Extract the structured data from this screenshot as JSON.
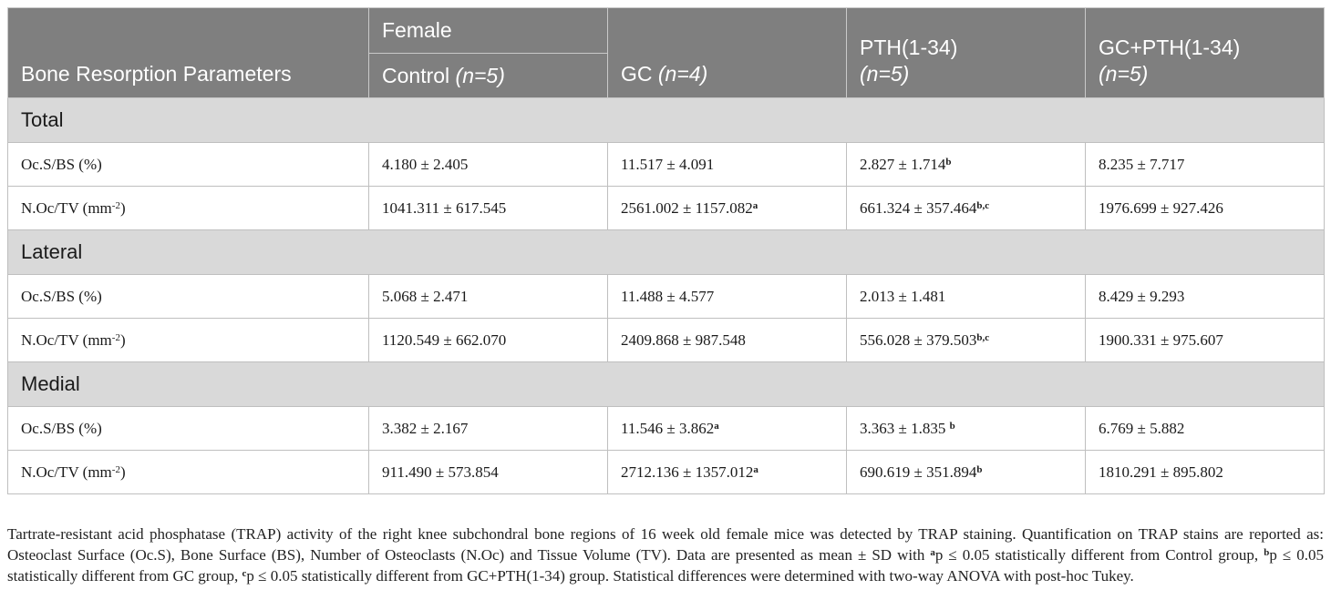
{
  "header": {
    "param_label": "Bone Resorption Parameters",
    "group_label": "Female",
    "columns": [
      {
        "name": "Control",
        "n": "(n=5)"
      },
      {
        "name": "GC",
        "n": "(n=4)"
      },
      {
        "name": "PTH(1-34)",
        "n": "(n=5)"
      },
      {
        "name": "GC+PTH(1-34)",
        "n": "(n=5)"
      }
    ]
  },
  "sections": [
    {
      "title": "Total",
      "rows": [
        {
          "param": "Oc.S/BS (%)",
          "cells": [
            {
              "v": "4.180 ± 2.405",
              "s": ""
            },
            {
              "v": "11.517 ± 4.091",
              "s": ""
            },
            {
              "v": "2.827 ± 1.714",
              "s": "b"
            },
            {
              "v": "8.235 ± 7.717",
              "s": ""
            }
          ]
        },
        {
          "param": "N.Oc/TV (mm",
          "unit_sup": "-2",
          "param_end": ")",
          "cells": [
            {
              "v": "1041.311 ± 617.545",
              "s": ""
            },
            {
              "v": "2561.002 ± 1157.082",
              "s": "a"
            },
            {
              "v": "661.324 ± 357.464",
              "s": "b,c"
            },
            {
              "v": "1976.699 ± 927.426",
              "s": ""
            }
          ]
        }
      ]
    },
    {
      "title": "Lateral",
      "rows": [
        {
          "param": "Oc.S/BS (%)",
          "cells": [
            {
              "v": "5.068 ± 2.471",
              "s": ""
            },
            {
              "v": "11.488 ± 4.577",
              "s": ""
            },
            {
              "v": "2.013 ± 1.481",
              "s": ""
            },
            {
              "v": "8.429 ± 9.293",
              "s": ""
            }
          ]
        },
        {
          "param": "N.Oc/TV (mm",
          "unit_sup": "-2",
          "param_end": ")",
          "cells": [
            {
              "v": "1120.549 ± 662.070",
              "s": ""
            },
            {
              "v": "2409.868 ± 987.548",
              "s": ""
            },
            {
              "v": "556.028 ± 379.503",
              "s": "b,c"
            },
            {
              "v": "1900.331 ± 975.607",
              "s": ""
            }
          ]
        }
      ]
    },
    {
      "title": "Medial",
      "rows": [
        {
          "param": "Oc.S/BS (%)",
          "cells": [
            {
              "v": "3.382 ± 2.167",
              "s": ""
            },
            {
              "v": "11.546 ± 3.862",
              "s": "a"
            },
            {
              "v": "3.363 ± 1.835 ",
              "s": "b"
            },
            {
              "v": "6.769 ± 5.882",
              "s": ""
            }
          ]
        },
        {
          "param": "N.Oc/TV (mm",
          "unit_sup": "-2",
          "param_end": ")",
          "cells": [
            {
              "v": "911.490 ± 573.854",
              "s": ""
            },
            {
              "v": "2712.136 ± 1357.012",
              "s": "a"
            },
            {
              "v": "690.619 ± 351.894",
              "s": "b"
            },
            {
              "v": "1810.291 ± 895.802",
              "s": ""
            }
          ]
        }
      ]
    }
  ],
  "caption": {
    "p1": "Tartrate-resistant acid phosphatase (TRAP) activity of the right knee subchondral bone regions of 16 week old female mice was detected by TRAP staining. Quantification on TRAP stains are reported as: Osteoclast Surface (Oc.S), Bone Surface (BS), Number of Osteoclasts (N.Oc) and Tissue Volume (TV). Data are presented as mean ± SD with ",
    "sa": "a",
    "p2": "p ≤ 0.05 statistically different from Control group, ",
    "sb": "b",
    "p3": "p ≤ 0.05 statistically different from GC group, ",
    "sc": "c",
    "p4": "p ≤ 0.05 statistically different from GC+PTH(1-34) group. Statistical differences were determined with two-way ANOVA with post-hoc Tukey."
  }
}
